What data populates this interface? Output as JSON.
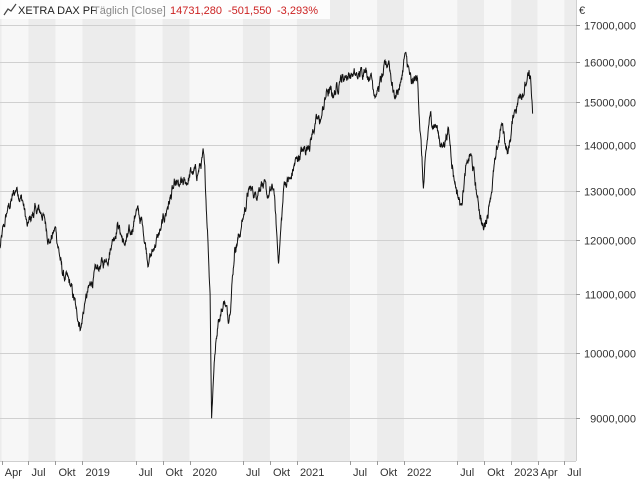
{
  "header": {
    "symbol": "XETRA DAX PF",
    "interval": "Täglich [Close]",
    "last_value": "14731,280",
    "change_abs": "-501,550",
    "change_pct": "-3,293%"
  },
  "colors": {
    "negative": "#cc2222",
    "line": "#111111",
    "header_gray": "#888888",
    "band_a": "#f7f7f7",
    "band_b": "#ececec",
    "grid": "#d0d0d0"
  },
  "icons": {
    "chart_type": "line-chart-icon"
  },
  "chart_data": {
    "type": "line",
    "title": "XETRA DAX PF",
    "currency_label": "€",
    "y_scale": "log",
    "ylim": [
      8400,
      17700
    ],
    "xlim": [
      "2018-03-26",
      "2023-08-10"
    ],
    "grid": true,
    "y_ticks": [
      {
        "value": 9000,
        "label": "9000,000"
      },
      {
        "value": 10000,
        "label": "10000,000"
      },
      {
        "value": 11000,
        "label": "11000,000"
      },
      {
        "value": 12000,
        "label": "12000,000"
      },
      {
        "value": 13000,
        "label": "13000,000"
      },
      {
        "value": 14000,
        "label": "14000,000"
      },
      {
        "value": 15000,
        "label": "15000,000"
      },
      {
        "value": 16000,
        "label": "16000,000"
      },
      {
        "value": 17000,
        "label": "17000,000"
      }
    ],
    "x_ticks": [
      {
        "date": "2018-04-01",
        "label": "Apr"
      },
      {
        "date": "2018-07-01",
        "label": "Jul"
      },
      {
        "date": "2018-10-01",
        "label": "Okt"
      },
      {
        "date": "2019-01-01",
        "label": "2019"
      },
      {
        "date": "2019-07-01",
        "label": "Jul"
      },
      {
        "date": "2019-10-01",
        "label": "Okt"
      },
      {
        "date": "2020-01-01",
        "label": "2020"
      },
      {
        "date": "2020-07-01",
        "label": "Jul"
      },
      {
        "date": "2020-10-01",
        "label": "Okt"
      },
      {
        "date": "2021-01-01",
        "label": "2021"
      },
      {
        "date": "2021-07-01",
        "label": "Jul"
      },
      {
        "date": "2021-10-01",
        "label": "Okt"
      },
      {
        "date": "2022-01-01",
        "label": "2022"
      },
      {
        "date": "2022-07-01",
        "label": "Jul"
      },
      {
        "date": "2022-10-01",
        "label": "Okt"
      },
      {
        "date": "2023-01-01",
        "label": "2023"
      },
      {
        "date": "2023-04-01",
        "label": "Apr"
      },
      {
        "date": "2023-07-01",
        "label": "Jul"
      }
    ],
    "series": [
      {
        "x": [
          "2018-03-26",
          "2018-04-20",
          "2018-05-22",
          "2018-06-11",
          "2018-06-27",
          "2018-07-26",
          "2018-08-22",
          "2018-09-12",
          "2018-10-02",
          "2018-10-25",
          "2018-11-21",
          "2018-12-10",
          "2018-12-27",
          "2019-01-10",
          "2019-01-31",
          "2019-02-28",
          "2019-03-20",
          "2019-04-10",
          "2019-05-01",
          "2019-05-22",
          "2019-06-13",
          "2019-07-03",
          "2019-07-25",
          "2019-08-15",
          "2019-09-04",
          "2019-09-25",
          "2019-10-17",
          "2019-11-07",
          "2019-11-27",
          "2019-12-18",
          "2020-01-08",
          "2020-01-29",
          "2020-02-19",
          "2020-03-03",
          "2020-03-11",
          "2020-03-16",
          "2020-03-25",
          "2020-04-08",
          "2020-04-29",
          "2020-05-14",
          "2020-06-03",
          "2020-06-24",
          "2020-07-21",
          "2020-08-12",
          "2020-09-02",
          "2020-09-23",
          "2020-10-14",
          "2020-10-30",
          "2020-11-19",
          "2020-12-10",
          "2020-12-30",
          "2021-01-20",
          "2021-02-10",
          "2021-03-03",
          "2021-03-24",
          "2021-04-14",
          "2021-05-05",
          "2021-05-26",
          "2021-06-16",
          "2021-07-07",
          "2021-07-28",
          "2021-08-18",
          "2021-09-08",
          "2021-09-29",
          "2021-10-20",
          "2021-11-10",
          "2021-11-30",
          "2021-12-21",
          "2022-01-05",
          "2022-01-26",
          "2022-02-16",
          "2022-03-08",
          "2022-03-29",
          "2022-04-20",
          "2022-05-11",
          "2022-06-01",
          "2022-06-22",
          "2022-07-13",
          "2022-08-03",
          "2022-08-17",
          "2022-09-07",
          "2022-09-29",
          "2022-10-19",
          "2022-11-09",
          "2022-11-30",
          "2022-12-21",
          "2023-01-11",
          "2023-02-01",
          "2023-02-22",
          "2023-03-08",
          "2023-03-15"
        ],
        "y": [
          11850,
          12580,
          13070,
          12800,
          12270,
          12640,
          12500,
          11950,
          12250,
          11350,
          11150,
          10760,
          10420,
          10870,
          11190,
          11500,
          11600,
          11900,
          12350,
          11950,
          12120,
          12600,
          12300,
          11560,
          11880,
          12210,
          12650,
          13050,
          13100,
          13150,
          13400,
          13350,
          13780,
          12100,
          11000,
          9000,
          9850,
          10550,
          10870,
          10520,
          11850,
          12200,
          13050,
          12950,
          13200,
          12850,
          13050,
          11560,
          13200,
          13250,
          13700,
          13880,
          13980,
          14450,
          14600,
          15300,
          15150,
          15520,
          15650,
          15700,
          15600,
          15830,
          15650,
          15190,
          15650,
          16050,
          15100,
          15500,
          16250,
          15450,
          15600,
          13050,
          14650,
          14450,
          13950,
          14400,
          13200,
          12700,
          13600,
          13800,
          12880,
          12200,
          12750,
          13700,
          14500,
          13800,
          14750,
          15200,
          15450,
          15650,
          14731
        ]
      }
    ]
  }
}
